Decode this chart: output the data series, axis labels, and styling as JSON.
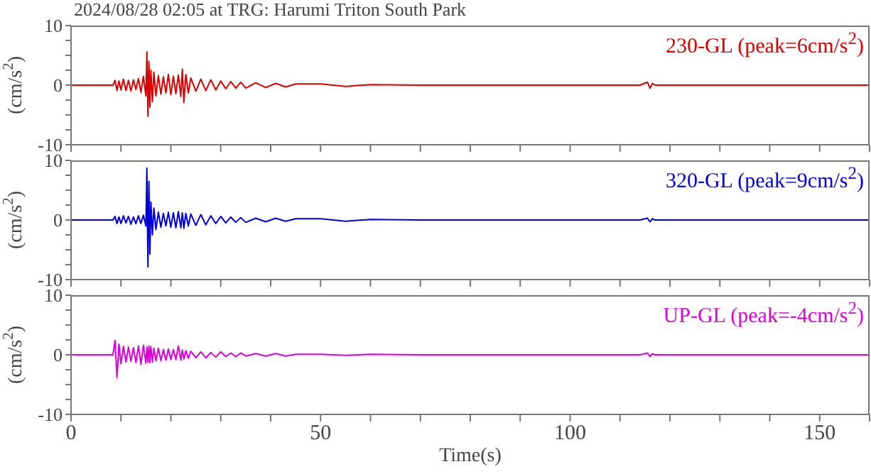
{
  "chart_data": [
    {
      "type": "line",
      "title": "2024/08/28 02:05 at TRG: Harumi Triton South Park",
      "ylabel": "(cm/s$^{2}$)",
      "xlim": [
        0,
        160
      ],
      "xticks": [
        {
          "value": 0,
          "label": null
        },
        {
          "value": 10,
          "label": null
        },
        {
          "value": 20,
          "label": null
        },
        {
          "value": 30,
          "label": null
        },
        {
          "value": 40,
          "label": null
        },
        {
          "value": 50,
          "label": null
        },
        {
          "value": 60,
          "label": null
        },
        {
          "value": 70,
          "label": null
        },
        {
          "value": 80,
          "label": null
        },
        {
          "value": 90,
          "label": null
        },
        {
          "value": 100,
          "label": null
        },
        {
          "value": 110,
          "label": null
        },
        {
          "value": 120,
          "label": null
        },
        {
          "value": 130,
          "label": null
        },
        {
          "value": 140,
          "label": null
        },
        {
          "value": 150,
          "label": null
        },
        {
          "value": 160,
          "label": null
        }
      ],
      "ylim": [
        -10,
        10
      ],
      "yticks": [
        -10,
        {
          "value": -7.5,
          "label": null
        },
        {
          "value": -5,
          "label": null
        },
        {
          "value": -2.5,
          "label": null
        },
        0,
        {
          "value": 2.5,
          "label": null
        },
        {
          "value": 5,
          "label": null
        },
        {
          "value": 7.5,
          "label": null
        },
        10
      ],
      "tick_labels": "y",
      "legend": "top right",
      "marker": "none",
      "line_style": "solid",
      "series": [
        {
          "name": "230-GL (peak=6cm/s$^{2}$)",
          "color": "#dd0000",
          "x": [
            0,
            8.4,
            8.8,
            9.2,
            9.6,
            10,
            10.5,
            11,
            11.5,
            12,
            12.5,
            13,
            13.5,
            14,
            14.5,
            15,
            15.2,
            15.4,
            15.6,
            15.8,
            16,
            16.3,
            16.6,
            17,
            17.5,
            18,
            18.5,
            19,
            19.5,
            20,
            20.5,
            21,
            21.5,
            22,
            22.3,
            22.6,
            23,
            23.5,
            24,
            25,
            26,
            27,
            28,
            29,
            30,
            31,
            32,
            33,
            34,
            35,
            37,
            39,
            41,
            43,
            45,
            50,
            55,
            60,
            70,
            80,
            100,
            114,
            115.5,
            116,
            116.5,
            117,
            118,
            130,
            160
          ],
          "values": [
            0,
            0,
            0.8,
            -0.9,
            0.7,
            -0.8,
            1,
            -0.9,
            0.8,
            -1,
            0.9,
            -0.7,
            1.1,
            -1.2,
            1.5,
            -1.8,
            5.6,
            -5.2,
            4,
            -3.7,
            2.5,
            -2.8,
            2.2,
            -1.8,
            1.6,
            -1.5,
            1.4,
            -1.3,
            1.8,
            -1.6,
            1.5,
            -1.4,
            1.7,
            -1.9,
            2.7,
            -2.9,
            1.8,
            -1.3,
            1.2,
            -1,
            1,
            -0.9,
            0.9,
            -0.8,
            0.7,
            -0.6,
            0.6,
            -0.5,
            0.5,
            -0.5,
            0.4,
            -0.4,
            0.3,
            -0.3,
            0.2,
            0.2,
            -0.2,
            0.1,
            0,
            0,
            0,
            0,
            0.5,
            -0.5,
            0.3,
            0,
            0,
            0,
            0
          ]
        }
      ]
    },
    {
      "type": "line",
      "ylabel": "(cm/s$^{2}$)",
      "xlim": [
        0,
        160
      ],
      "xticks": [
        {
          "value": 0,
          "label": null
        },
        {
          "value": 10,
          "label": null
        },
        {
          "value": 20,
          "label": null
        },
        {
          "value": 30,
          "label": null
        },
        {
          "value": 40,
          "label": null
        },
        {
          "value": 50,
          "label": null
        },
        {
          "value": 60,
          "label": null
        },
        {
          "value": 70,
          "label": null
        },
        {
          "value": 80,
          "label": null
        },
        {
          "value": 90,
          "label": null
        },
        {
          "value": 100,
          "label": null
        },
        {
          "value": 110,
          "label": null
        },
        {
          "value": 120,
          "label": null
        },
        {
          "value": 130,
          "label": null
        },
        {
          "value": 140,
          "label": null
        },
        {
          "value": 150,
          "label": null
        },
        {
          "value": 160,
          "label": null
        }
      ],
      "ylim": [
        -10,
        10
      ],
      "yticks": [
        -10,
        {
          "value": -7.5,
          "label": null
        },
        {
          "value": -5,
          "label": null
        },
        {
          "value": -2.5,
          "label": null
        },
        0,
        {
          "value": 2.5,
          "label": null
        },
        {
          "value": 5,
          "label": null
        },
        {
          "value": 7.5,
          "label": null
        },
        10
      ],
      "tick_labels": "y",
      "legend": "top right",
      "marker": "none",
      "line_style": "solid",
      "series": [
        {
          "name": "320-GL (peak=9cm/s$^{2}$)",
          "color": "#0000dd",
          "x": [
            0,
            8.4,
            8.8,
            9.2,
            9.6,
            10,
            10.5,
            11,
            11.5,
            12,
            12.5,
            13,
            13.5,
            14,
            14.5,
            15,
            15.2,
            15.4,
            15.6,
            15.8,
            16,
            16.3,
            16.6,
            17,
            17.5,
            18,
            18.5,
            19,
            19.5,
            20,
            20.5,
            21,
            21.5,
            22,
            22.3,
            22.6,
            23,
            23.5,
            24,
            25,
            26,
            27,
            28,
            29,
            30,
            31,
            32,
            33,
            34,
            35,
            37,
            39,
            41,
            43,
            45,
            50,
            55,
            60,
            70,
            80,
            100,
            114,
            115.5,
            116,
            116.5,
            117,
            118,
            130,
            160
          ],
          "values": [
            0,
            0,
            0.6,
            -0.6,
            0.5,
            -0.6,
            0.7,
            -0.5,
            0.6,
            -0.7,
            0.5,
            -0.6,
            0.7,
            -0.6,
            0.8,
            -1,
            8.7,
            -7.9,
            6.5,
            -5.7,
            3,
            -2.5,
            2,
            -1.6,
            1.3,
            -1.2,
            1.1,
            -1,
            1.3,
            -1.2,
            1.2,
            -1.3,
            1.4,
            -1.3,
            1.2,
            -1.4,
            1.1,
            -1,
            1,
            -0.9,
            0.9,
            -0.8,
            0.7,
            -0.6,
            0.6,
            -0.5,
            0.5,
            -0.4,
            0.4,
            -0.4,
            0.3,
            -0.3,
            0.3,
            -0.2,
            0.2,
            0.2,
            -0.2,
            0.1,
            0,
            0,
            0,
            0,
            0.3,
            -0.3,
            0.2,
            0,
            0,
            0,
            0
          ]
        }
      ]
    },
    {
      "type": "line",
      "ylabel": "(cm/s$^{2}$)",
      "xlabel": "Time(s)",
      "xlim": [
        0,
        160
      ],
      "xticks": [
        0,
        {
          "value": 10,
          "label": null
        },
        {
          "value": 20,
          "label": null
        },
        {
          "value": 30,
          "label": null
        },
        {
          "value": 40,
          "label": null
        },
        50,
        {
          "value": 60,
          "label": null
        },
        {
          "value": 70,
          "label": null
        },
        {
          "value": 80,
          "label": null
        },
        {
          "value": 90,
          "label": null
        },
        100,
        {
          "value": 110,
          "label": null
        },
        {
          "value": 120,
          "label": null
        },
        {
          "value": 130,
          "label": null
        },
        {
          "value": 140,
          "label": null
        },
        150,
        {
          "value": 160,
          "label": null
        }
      ],
      "ylim": [
        -10,
        10
      ],
      "yticks": [
        -10,
        {
          "value": -7.5,
          "label": null
        },
        {
          "value": -5,
          "label": null
        },
        {
          "value": -2.5,
          "label": null
        },
        0,
        {
          "value": 2.5,
          "label": null
        },
        {
          "value": 5,
          "label": null
        },
        {
          "value": 7.5,
          "label": null
        },
        10
      ],
      "legend": "top right",
      "marker": "none",
      "line_style": "solid",
      "series": [
        {
          "name": "UP-GL (peak=-4cm/s$^{2}$)",
          "color": "#dd00dd",
          "x": [
            0,
            8.4,
            8.8,
            9.2,
            9.6,
            10,
            10.5,
            11,
            11.5,
            12,
            12.5,
            13,
            13.5,
            14,
            14.5,
            15,
            15.2,
            15.4,
            15.6,
            15.8,
            16,
            16.3,
            16.6,
            17,
            17.5,
            18,
            18.5,
            19,
            19.5,
            20,
            20.5,
            21,
            21.5,
            22,
            22.3,
            22.6,
            23,
            23.5,
            24,
            25,
            26,
            27,
            28,
            29,
            30,
            31,
            32,
            33,
            34,
            35,
            37,
            39,
            41,
            43,
            45,
            50,
            55,
            60,
            70,
            80,
            100,
            114,
            115.5,
            116,
            116.5,
            117,
            118,
            130,
            160
          ],
          "values": [
            0,
            0,
            2.4,
            -3.8,
            1.8,
            -1.5,
            1.4,
            -1.2,
            1.3,
            -1.1,
            1.2,
            -1.3,
            1.5,
            -1.6,
            1.6,
            -1.4,
            1.3,
            -1.2,
            1.5,
            -1.3,
            1.4,
            -1.2,
            1.1,
            -1,
            1.1,
            -1,
            0.9,
            -0.9,
            1,
            -0.8,
            0.9,
            -0.8,
            1.5,
            -0.9,
            0.8,
            -0.7,
            0.7,
            -0.6,
            0.6,
            -0.5,
            0.5,
            -0.5,
            0.4,
            -0.4,
            0.5,
            -0.3,
            0.3,
            -0.3,
            0.3,
            -0.2,
            0.2,
            -0.2,
            0.2,
            -0.2,
            0.1,
            0.1,
            -0.1,
            0.1,
            0,
            0,
            0,
            0,
            0.3,
            -0.3,
            0.2,
            0,
            0,
            0,
            0
          ]
        }
      ]
    }
  ]
}
